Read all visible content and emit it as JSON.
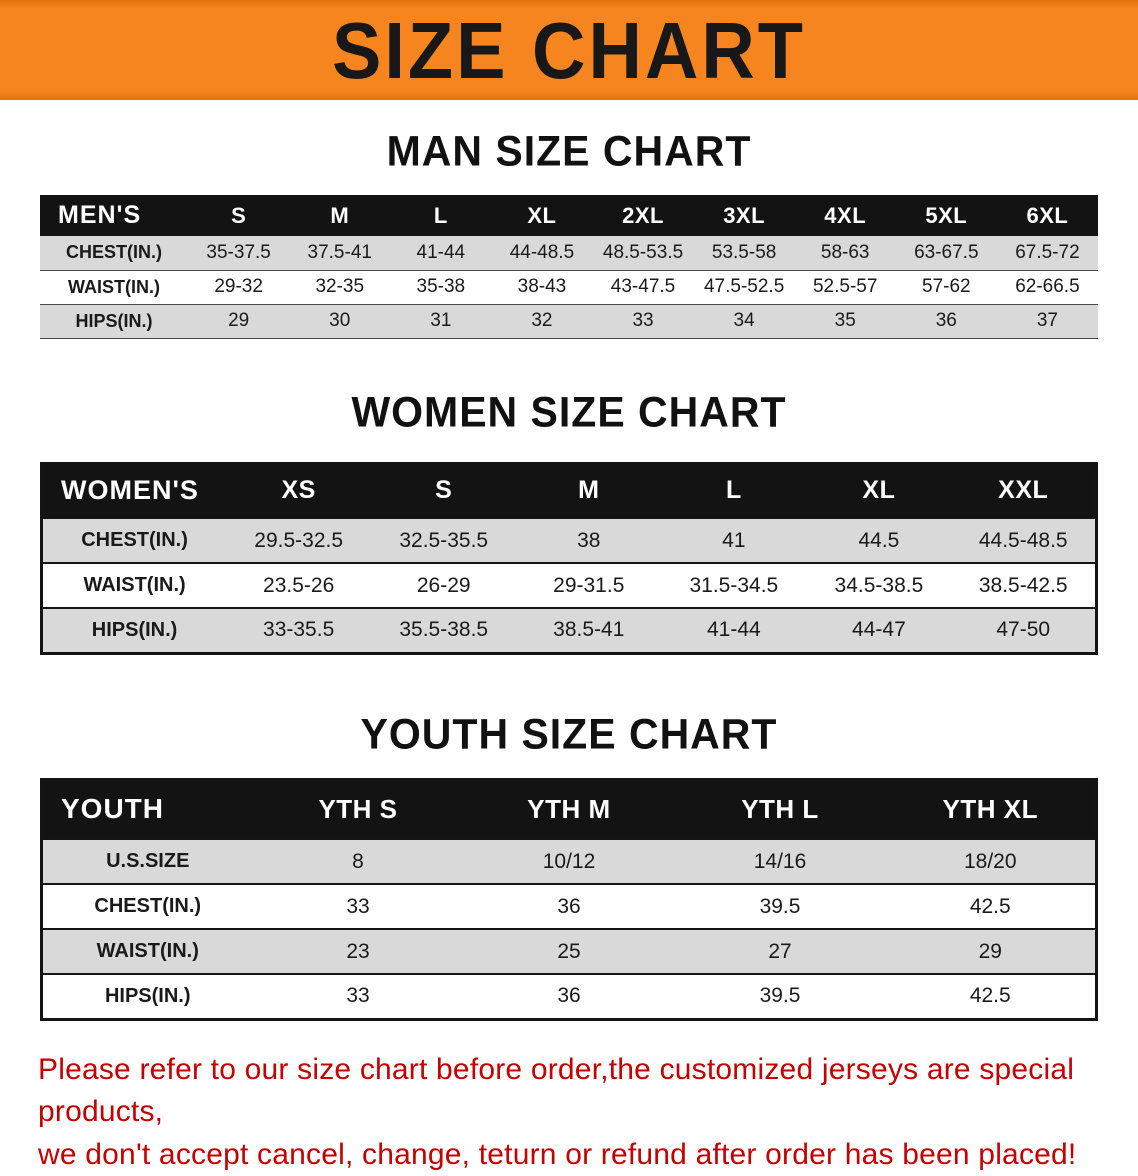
{
  "banner": {
    "title": "SIZE CHART"
  },
  "men": {
    "section_title": "MAN SIZE CHART",
    "table": {
      "header": [
        "MEN'S",
        "S",
        "M",
        "L",
        "XL",
        "2XL",
        "3XL",
        "4XL",
        "5XL",
        "6XL"
      ],
      "rows": [
        [
          "CHEST(IN.)",
          "35-37.5",
          "37.5-41",
          "41-44",
          "44-48.5",
          "48.5-53.5",
          "53.5-58",
          "58-63",
          "63-67.5",
          "67.5-72"
        ],
        [
          "WAIST(IN.)",
          "29-32",
          "32-35",
          "35-38",
          "38-43",
          "43-47.5",
          "47.5-52.5",
          "52.5-57",
          "57-62",
          "62-66.5"
        ],
        [
          "HIPS(IN.)",
          "29",
          "30",
          "31",
          "32",
          "33",
          "34",
          "35",
          "36",
          "37"
        ]
      ]
    }
  },
  "women": {
    "section_title": "WOMEN SIZE CHART",
    "table": {
      "header": [
        "WOMEN'S",
        "XS",
        "S",
        "M",
        "L",
        "XL",
        "XXL"
      ],
      "rows": [
        [
          "CHEST(IN.)",
          "29.5-32.5",
          "32.5-35.5",
          "38",
          "41",
          "44.5",
          "44.5-48.5"
        ],
        [
          "WAIST(IN.)",
          "23.5-26",
          "26-29",
          "29-31.5",
          "31.5-34.5",
          "34.5-38.5",
          "38.5-42.5"
        ],
        [
          "HIPS(IN.)",
          "33-35.5",
          "35.5-38.5",
          "38.5-41",
          "41-44",
          "44-47",
          "47-50"
        ]
      ]
    }
  },
  "youth": {
    "section_title": "YOUTH SIZE CHART",
    "table": {
      "header": [
        "YOUTH",
        "YTH S",
        "YTH M",
        "YTH L",
        "YTH XL"
      ],
      "rows": [
        [
          "U.S.SIZE",
          "8",
          "10/12",
          "14/16",
          "18/20"
        ],
        [
          "CHEST(IN.)",
          "33",
          "36",
          "39.5",
          "42.5"
        ],
        [
          "WAIST(IN.)",
          "23",
          "25",
          "27",
          "29"
        ],
        [
          "HIPS(IN.)",
          "33",
          "36",
          "39.5",
          "42.5"
        ]
      ]
    }
  },
  "footer": {
    "line1": "Please refer to our size chart before order,the customized jerseys are special products,",
    "line2": "we don't accept cancel, change, teturn or refund after order has been placed!"
  },
  "colors": {
    "banner_orange": "#f6851f",
    "banner_edge": "#e2730c",
    "table_header_bg": "#131313",
    "table_header_text": "#ffffff",
    "row_stripe_gray": "#d9d9d9",
    "footer_red": "#c40000",
    "title_black": "#111111"
  }
}
